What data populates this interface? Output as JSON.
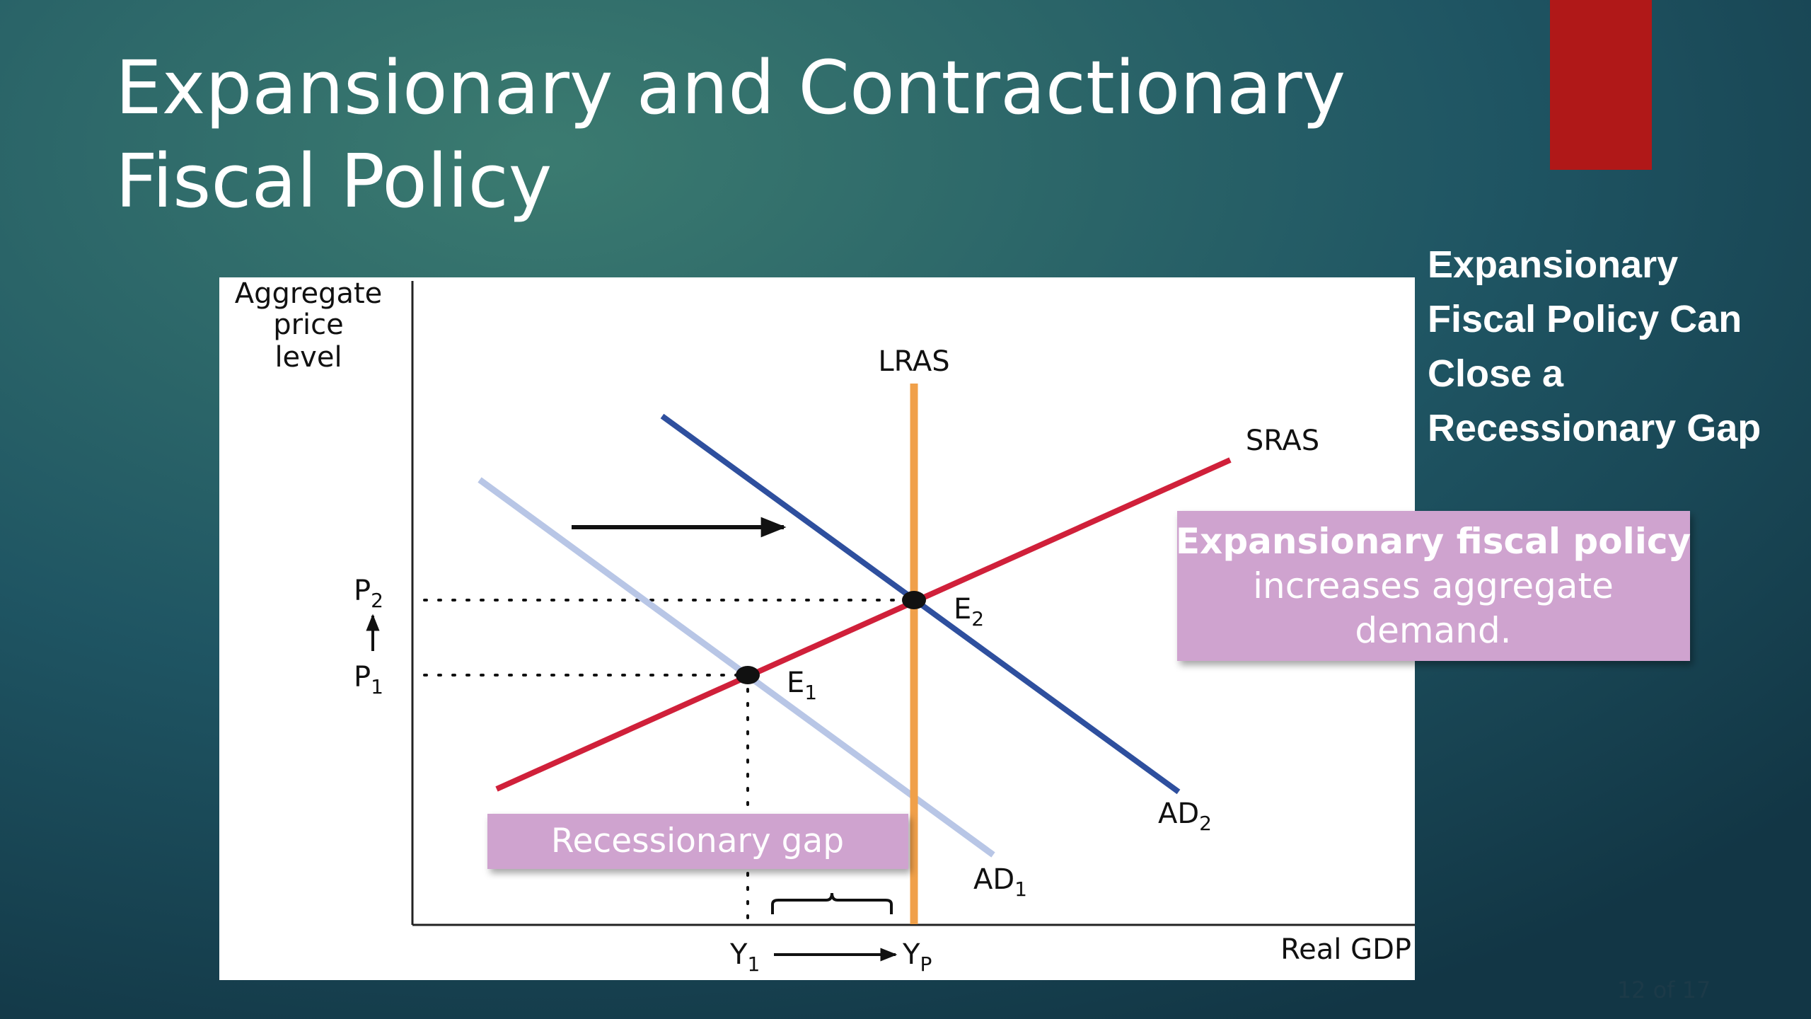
{
  "title": {
    "lines": [
      "Expansionary and Contractionary",
      "Fiscal Policy"
    ]
  },
  "side_heading": {
    "lines": [
      "Expansionary",
      "Fiscal Policy Can",
      "Close a",
      "Recessionary Gap"
    ]
  },
  "callout": {
    "bold": "Expansionary fiscal policy",
    "lines": [
      "increases aggregate",
      "demand."
    ]
  },
  "diagram": {
    "y_axis_label": [
      "Aggregate",
      "price",
      "level"
    ],
    "x_axis_label": "Real GDP",
    "lras": "LRAS",
    "sras": "SRAS",
    "ad1": {
      "main": "AD",
      "sub": "1"
    },
    "ad2": {
      "main": "AD",
      "sub": "2"
    },
    "e1": {
      "main": "E",
      "sub": "1"
    },
    "e2": {
      "main": "E",
      "sub": "2"
    },
    "p1": {
      "main": "P",
      "sub": "1"
    },
    "p2": {
      "main": "P",
      "sub": "2"
    },
    "y1": {
      "main": "Y",
      "sub": "1"
    },
    "yp": {
      "main": "Y",
      "sub": "P"
    },
    "gap_label": "Recessionary gap"
  },
  "page_counter": "12 of 17"
}
